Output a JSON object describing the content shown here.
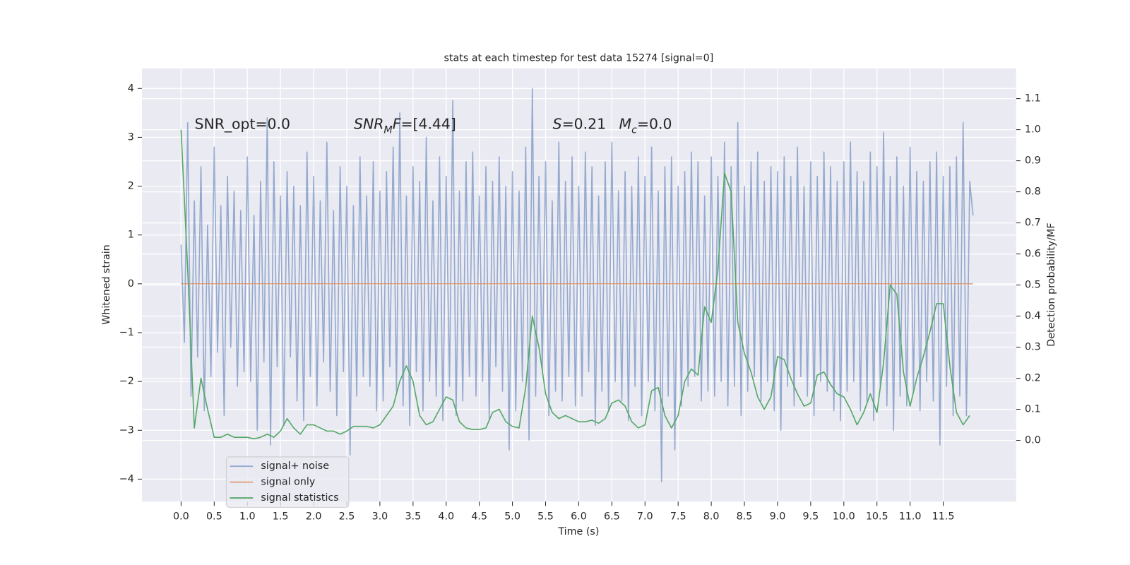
{
  "chart_data": {
    "type": "line",
    "title": "stats at each timestep for test data 15274 [signal=0]",
    "xlabel": "Time (s)",
    "ylabel": "Whitened strain",
    "y2label": "Detection probability/MF",
    "grid": true,
    "legend": "lower left",
    "xlim": [
      -0.59,
      12.6
    ],
    "ylim": [
      -4.46,
      4.41
    ],
    "y2lim": [
      -0.197,
      1.197
    ],
    "xticks": [
      {
        "value": 0,
        "label": "0.0"
      },
      0.5,
      {
        "value": 1,
        "label": "1.0"
      },
      1.5,
      {
        "value": 2,
        "label": "2.0"
      },
      2.5,
      {
        "value": 3,
        "label": "3.0"
      },
      3.5,
      {
        "value": 4,
        "label": "4.0"
      },
      4.5,
      {
        "value": 5,
        "label": "5.0"
      },
      5.5,
      {
        "value": 6,
        "label": "6.0"
      },
      6.5,
      {
        "value": 7,
        "label": "7.0"
      },
      7.5,
      {
        "value": 8,
        "label": "8.0"
      },
      8.5,
      {
        "value": 9,
        "label": "9.0"
      },
      9.5,
      {
        "value": 10,
        "label": "10.0"
      },
      10.5,
      {
        "value": 11,
        "label": "11.0"
      },
      11.5
    ],
    "yticks": [
      {
        "value": -4,
        "label": "−4"
      },
      {
        "value": -3,
        "label": "−3"
      },
      {
        "value": -2,
        "label": "−2"
      },
      {
        "value": -1,
        "label": "−1"
      },
      0,
      1,
      2,
      3,
      4
    ],
    "y2ticks": [
      {
        "value": 0,
        "label": "0.0"
      },
      0.1,
      0.2,
      0.3,
      0.4,
      0.5,
      0.6,
      0.7,
      0.8,
      0.9,
      {
        "value": 1,
        "label": "1.0"
      },
      1.1
    ],
    "annotations": [
      [
        {
          "text": "SNR_opt=0.0"
        }
      ],
      [
        {
          "text": "SNR",
          "italic": true
        },
        {
          "text": "M",
          "italic": true,
          "sub": true
        },
        {
          "text": "F",
          "italic": true
        },
        {
          "text": "=[4.44]"
        }
      ],
      [
        {
          "text": "S",
          "italic": true
        },
        {
          "text": "=0.21"
        }
      ],
      [
        {
          "text": "M",
          "italic": true
        },
        {
          "text": "c",
          "italic": true,
          "sub": true
        },
        {
          "text": "=0.0"
        }
      ]
    ],
    "series": [
      {
        "name": "signal+ noise",
        "color": "#4c72b0",
        "alpha": 0.55,
        "axis": "y",
        "x": [
          0,
          0.05,
          0.1,
          0.15,
          0.2,
          0.25,
          0.3,
          0.35,
          0.4,
          0.45,
          0.5,
          0.55,
          0.6,
          0.65,
          0.7,
          0.75,
          0.8,
          0.85,
          0.9,
          0.95,
          1,
          1.05,
          1.1,
          1.15,
          1.2,
          1.25,
          1.3,
          1.35,
          1.4,
          1.45,
          1.5,
          1.55,
          1.6,
          1.65,
          1.7,
          1.75,
          1.8,
          1.85,
          1.9,
          1.95,
          2,
          2.05,
          2.1,
          2.15,
          2.2,
          2.25,
          2.3,
          2.35,
          2.4,
          2.45,
          2.5,
          2.55,
          2.6,
          2.65,
          2.7,
          2.75,
          2.8,
          2.85,
          2.9,
          2.95,
          3,
          3.05,
          3.1,
          3.15,
          3.2,
          3.25,
          3.3,
          3.35,
          3.4,
          3.45,
          3.5,
          3.55,
          3.6,
          3.65,
          3.7,
          3.75,
          3.8,
          3.85,
          3.9,
          3.95,
          4,
          4.05,
          4.1,
          4.15,
          4.2,
          4.25,
          4.3,
          4.35,
          4.4,
          4.45,
          4.5,
          4.55,
          4.6,
          4.65,
          4.7,
          4.75,
          4.8,
          4.85,
          4.9,
          4.95,
          5,
          5.05,
          5.1,
          5.15,
          5.2,
          5.25,
          5.3,
          5.35,
          5.4,
          5.45,
          5.5,
          5.55,
          5.6,
          5.65,
          5.7,
          5.75,
          5.8,
          5.85,
          5.9,
          5.95,
          6,
          6.05,
          6.1,
          6.15,
          6.2,
          6.25,
          6.3,
          6.35,
          6.4,
          6.45,
          6.5,
          6.55,
          6.6,
          6.65,
          6.7,
          6.75,
          6.8,
          6.85,
          6.9,
          6.95,
          7,
          7.05,
          7.1,
          7.15,
          7.2,
          7.25,
          7.3,
          7.35,
          7.4,
          7.45,
          7.5,
          7.55,
          7.6,
          7.65,
          7.7,
          7.75,
          7.8,
          7.85,
          7.9,
          7.95,
          8,
          8.05,
          8.1,
          8.15,
          8.2,
          8.25,
          8.3,
          8.35,
          8.4,
          8.45,
          8.5,
          8.55,
          8.6,
          8.65,
          8.7,
          8.75,
          8.8,
          8.85,
          8.9,
          8.95,
          9,
          9.05,
          9.1,
          9.15,
          9.2,
          9.25,
          9.3,
          9.35,
          9.4,
          9.45,
          9.5,
          9.55,
          9.6,
          9.65,
          9.7,
          9.75,
          9.8,
          9.85,
          9.9,
          9.95,
          10,
          10.05,
          10.1,
          10.15,
          10.2,
          10.25,
          10.3,
          10.35,
          10.4,
          10.45,
          10.5,
          10.55,
          10.6,
          10.65,
          10.7,
          10.75,
          10.8,
          10.85,
          10.9,
          10.95,
          11,
          11.05,
          11.1,
          11.15,
          11.2,
          11.25,
          11.3,
          11.35,
          11.4,
          11.45,
          11.5,
          11.55,
          11.6,
          11.65,
          11.7,
          11.75,
          11.8,
          11.85,
          11.9,
          11.95
        ],
        "values": [
          0.8,
          -1.2,
          3.3,
          -2.3,
          1.7,
          -1.5,
          2.4,
          -2.6,
          1.2,
          -1.9,
          2.8,
          -1.4,
          1.6,
          -2.7,
          2.2,
          -1.3,
          1.9,
          -2.1,
          1.5,
          -1.8,
          2.6,
          -2.0,
          1.4,
          -3.0,
          2.1,
          -1.6,
          3.4,
          -3.3,
          2.5,
          -1.7,
          1.8,
          -2.9,
          2.3,
          -1.5,
          2.0,
          -2.4,
          1.6,
          -2.8,
          2.7,
          -1.9,
          2.2,
          -2.5,
          1.7,
          -1.6,
          2.9,
          -2.2,
          1.5,
          -2.7,
          2.4,
          -1.8,
          2.0,
          -3.5,
          1.6,
          -2.3,
          2.6,
          -1.9,
          1.8,
          -2.1,
          2.5,
          -2.6,
          1.9,
          -2.4,
          2.3,
          -1.7,
          2.8,
          -2.2,
          3.5,
          -2.5,
          1.8,
          -2.9,
          2.4,
          -1.8,
          2.1,
          -2.6,
          3.0,
          -2.0,
          1.7,
          -2.3,
          2.6,
          -2.8,
          2.2,
          -2.1,
          3.75,
          -2.7,
          1.9,
          -2.4,
          2.5,
          -1.9,
          2.7,
          -2.3,
          1.8,
          -2.0,
          2.4,
          -2.8,
          2.1,
          -1.7,
          2.6,
          -2.2,
          2.0,
          -3.4,
          2.3,
          -2.6,
          1.9,
          -2.0,
          2.8,
          -3.2,
          4.0,
          -2.3,
          2.2,
          -1.8,
          2.5,
          -2.7,
          1.7,
          -2.2,
          2.9,
          -2.4,
          2.1,
          -1.9,
          2.6,
          -2.5,
          2.0,
          -2.3,
          2.7,
          -1.8,
          2.4,
          -2.9,
          1.8,
          -2.2,
          2.5,
          -2.6,
          2.9,
          -2.0,
          1.9,
          -2.4,
          2.3,
          -2.8,
          2.0,
          -2.1,
          2.6,
          -2.7,
          2.2,
          -2.0,
          2.8,
          -2.6,
          1.9,
          -4.05,
          2.4,
          -2.3,
          2.6,
          -3.4,
          2.0,
          -2.5,
          2.3,
          -2.1,
          2.7,
          -1.9,
          2.5,
          -2.4,
          1.8,
          -2.2,
          2.6,
          -2.3,
          2.2,
          -2.0,
          2.9,
          -2.5,
          2.4,
          -2.1,
          3.3,
          -2.7,
          2.0,
          -2.2,
          2.5,
          -1.9,
          2.7,
          -2.4,
          2.1,
          -2.0,
          2.4,
          -2.6,
          2.3,
          -3.0,
          2.6,
          -2.1,
          2.2,
          -2.5,
          2.8,
          -1.9,
          2.0,
          -2.3,
          2.5,
          -2.7,
          2.2,
          -2.0,
          2.7,
          -2.2,
          2.4,
          -2.6,
          2.1,
          -2.8,
          2.5,
          -2.2,
          2.9,
          -2.0,
          2.3,
          -2.6,
          2.1,
          -2.4,
          2.7,
          -2.8,
          2.4,
          -2.1,
          3.1,
          -2.5,
          2.2,
          -3.0,
          2.6,
          -2.3,
          2.0,
          -2.5,
          2.8,
          -2.2,
          2.3,
          -2.6,
          2.1,
          -2.0,
          2.5,
          -2.4,
          2.7,
          -3.3,
          2.2,
          -2.1,
          2.4,
          -2.7,
          2.6,
          -2.3,
          3.3,
          -2.7,
          2.1,
          1.4
        ]
      },
      {
        "name": "signal only",
        "color": "#dd8452",
        "alpha": 0.7,
        "axis": "y",
        "x": [
          0,
          11.95
        ],
        "values": [
          0,
          0
        ]
      },
      {
        "name": "signal statistics",
        "color": "#55a868",
        "alpha": 1,
        "axis": "y2",
        "x": [
          0,
          0.1,
          0.2,
          0.3,
          0.4,
          0.5,
          0.6,
          0.7,
          0.8,
          0.9,
          1,
          1.1,
          1.2,
          1.3,
          1.4,
          1.5,
          1.6,
          1.7,
          1.8,
          1.9,
          2,
          2.1,
          2.2,
          2.3,
          2.4,
          2.5,
          2.6,
          2.7,
          2.8,
          2.9,
          3,
          3.1,
          3.2,
          3.3,
          3.4,
          3.5,
          3.6,
          3.7,
          3.8,
          3.9,
          4,
          4.1,
          4.2,
          4.3,
          4.4,
          4.5,
          4.6,
          4.7,
          4.8,
          4.9,
          5,
          5.1,
          5.2,
          5.3,
          5.4,
          5.5,
          5.6,
          5.7,
          5.8,
          5.9,
          6,
          6.1,
          6.2,
          6.3,
          6.4,
          6.5,
          6.6,
          6.7,
          6.8,
          6.9,
          7,
          7.1,
          7.2,
          7.3,
          7.4,
          7.5,
          7.6,
          7.7,
          7.8,
          7.9,
          8,
          8.1,
          8.2,
          8.3,
          8.4,
          8.5,
          8.6,
          8.7,
          8.8,
          8.9,
          9,
          9.1,
          9.2,
          9.3,
          9.4,
          9.5,
          9.6,
          9.7,
          9.8,
          9.9,
          10,
          10.1,
          10.2,
          10.3,
          10.4,
          10.5,
          10.6,
          10.7,
          10.8,
          10.9,
          11,
          11.1,
          11.2,
          11.3,
          11.4,
          11.5,
          11.6,
          11.7,
          11.8,
          11.9
        ],
        "values": [
          1.0,
          0.55,
          0.04,
          0.2,
          0.1,
          0.01,
          0.01,
          0.02,
          0.01,
          0.01,
          0.01,
          0.005,
          0.01,
          0.02,
          0.01,
          0.03,
          0.07,
          0.04,
          0.02,
          0.05,
          0.05,
          0.04,
          0.03,
          0.03,
          0.02,
          0.03,
          0.045,
          0.045,
          0.045,
          0.04,
          0.05,
          0.08,
          0.11,
          0.19,
          0.24,
          0.19,
          0.08,
          0.05,
          0.06,
          0.1,
          0.14,
          0.13,
          0.06,
          0.04,
          0.035,
          0.035,
          0.04,
          0.09,
          0.1,
          0.06,
          0.045,
          0.04,
          0.17,
          0.4,
          0.3,
          0.15,
          0.09,
          0.07,
          0.08,
          0.07,
          0.06,
          0.06,
          0.065,
          0.055,
          0.07,
          0.12,
          0.13,
          0.11,
          0.06,
          0.04,
          0.05,
          0.16,
          0.17,
          0.08,
          0.04,
          0.08,
          0.19,
          0.23,
          0.21,
          0.43,
          0.38,
          0.55,
          0.86,
          0.8,
          0.38,
          0.28,
          0.22,
          0.14,
          0.1,
          0.14,
          0.27,
          0.26,
          0.2,
          0.15,
          0.11,
          0.12,
          0.21,
          0.22,
          0.18,
          0.15,
          0.14,
          0.1,
          0.05,
          0.09,
          0.15,
          0.09,
          0.25,
          0.5,
          0.47,
          0.22,
          0.11,
          0.2,
          0.27,
          0.35,
          0.44,
          0.44,
          0.24,
          0.09,
          0.05,
          0.08
        ]
      }
    ]
  }
}
